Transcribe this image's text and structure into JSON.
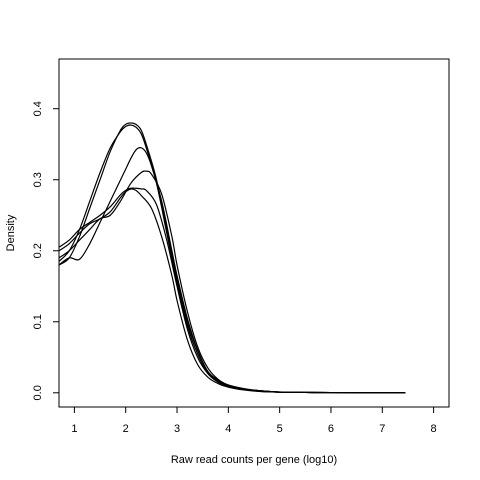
{
  "chart_data": {
    "type": "line",
    "title": "",
    "xlabel": "Raw read counts per gene (log10)",
    "ylabel": "Density",
    "xlim": [
      0.7,
      8.3
    ],
    "ylim": [
      -0.02,
      0.47
    ],
    "xticks": [
      1,
      2,
      3,
      4,
      5,
      6,
      7,
      8
    ],
    "yticks": [
      0.0,
      0.1,
      0.2,
      0.3,
      0.4
    ],
    "ytick_labels": [
      "0.0",
      "0.1",
      "0.2",
      "0.3",
      "0.4"
    ],
    "grid": false,
    "legend": "none",
    "series": [
      {
        "x": [
          0.7,
          0.9,
          1.1,
          1.3,
          1.5,
          1.7,
          1.9,
          2.0,
          2.1,
          2.2,
          2.3,
          2.4,
          2.6,
          2.8,
          3.0,
          3.2,
          3.4,
          3.6,
          3.8,
          4.0,
          4.3,
          4.6,
          5.0,
          5.5,
          6.0,
          7.0,
          7.45
        ],
        "y": [
          0.18,
          0.19,
          0.22,
          0.26,
          0.3,
          0.34,
          0.37,
          0.378,
          0.38,
          0.378,
          0.37,
          0.35,
          0.3,
          0.23,
          0.16,
          0.1,
          0.06,
          0.03,
          0.018,
          0.01,
          0.005,
          0.003,
          0.001,
          0.0005,
          0.0003,
          0.0002,
          0.0001
        ]
      },
      {
        "x": [
          0.7,
          0.9,
          1.1,
          1.3,
          1.5,
          1.7,
          1.9,
          2.0,
          2.1,
          2.2,
          2.3,
          2.4,
          2.6,
          2.8,
          3.0,
          3.2,
          3.4,
          3.6,
          3.8,
          4.0,
          4.3,
          4.6,
          5.0,
          5.5,
          6.0,
          7.0,
          7.45
        ],
        "y": [
          0.185,
          0.2,
          0.23,
          0.27,
          0.31,
          0.345,
          0.368,
          0.375,
          0.377,
          0.374,
          0.365,
          0.345,
          0.295,
          0.225,
          0.155,
          0.095,
          0.055,
          0.028,
          0.016,
          0.009,
          0.005,
          0.003,
          0.001,
          0.0005,
          0.0003,
          0.0002,
          0.0001
        ]
      },
      {
        "x": [
          0.7,
          0.9,
          1.1,
          1.3,
          1.5,
          1.7,
          1.9,
          2.0,
          2.1,
          2.2,
          2.3,
          2.4,
          2.5,
          2.7,
          2.9,
          3.0,
          3.2,
          3.4,
          3.6,
          3.8,
          4.0,
          4.3,
          4.6,
          5.0,
          5.5,
          6.0,
          7.0,
          7.45
        ],
        "y": [
          0.18,
          0.19,
          0.188,
          0.21,
          0.24,
          0.27,
          0.3,
          0.315,
          0.33,
          0.342,
          0.345,
          0.338,
          0.32,
          0.27,
          0.2,
          0.165,
          0.105,
          0.06,
          0.03,
          0.017,
          0.01,
          0.005,
          0.003,
          0.001,
          0.0005,
          0.0003,
          0.0002,
          0.0001
        ]
      },
      {
        "x": [
          0.7,
          0.9,
          1.1,
          1.3,
          1.5,
          1.7,
          1.9,
          2.1,
          2.3,
          2.4,
          2.5,
          2.7,
          2.9,
          3.0,
          3.2,
          3.4,
          3.6,
          3.8,
          4.0,
          4.3,
          4.6,
          5.0,
          5.5,
          6.0,
          7.0,
          7.45
        ],
        "y": [
          0.19,
          0.2,
          0.215,
          0.23,
          0.245,
          0.25,
          0.27,
          0.295,
          0.31,
          0.312,
          0.308,
          0.28,
          0.22,
          0.18,
          0.115,
          0.065,
          0.035,
          0.019,
          0.011,
          0.006,
          0.003,
          0.0012,
          0.0006,
          0.0003,
          0.0002,
          0.0001
        ]
      },
      {
        "x": [
          0.7,
          0.9,
          1.1,
          1.3,
          1.5,
          1.7,
          1.9,
          2.0,
          2.1,
          2.2,
          2.3,
          2.5,
          2.7,
          2.9,
          3.0,
          3.2,
          3.4,
          3.6,
          3.8,
          4.0,
          4.3,
          4.6,
          5.0,
          5.5,
          6.0,
          7.0,
          7.45
        ],
        "y": [
          0.2,
          0.21,
          0.225,
          0.238,
          0.245,
          0.255,
          0.275,
          0.283,
          0.287,
          0.285,
          0.278,
          0.26,
          0.22,
          0.165,
          0.13,
          0.075,
          0.04,
          0.022,
          0.013,
          0.008,
          0.004,
          0.002,
          0.001,
          0.0005,
          0.0003,
          0.0002,
          0.0001
        ]
      },
      {
        "x": [
          0.7,
          0.9,
          1.1,
          1.3,
          1.5,
          1.7,
          1.9,
          2.0,
          2.1,
          2.2,
          2.3,
          2.4,
          2.6,
          2.8,
          3.0,
          3.2,
          3.4,
          3.6,
          3.8,
          4.0,
          4.3,
          4.6,
          5.0,
          5.5,
          6.0,
          7.0,
          7.45
        ],
        "y": [
          0.205,
          0.215,
          0.23,
          0.24,
          0.25,
          0.262,
          0.279,
          0.285,
          0.288,
          0.288,
          0.287,
          0.285,
          0.265,
          0.215,
          0.15,
          0.09,
          0.05,
          0.027,
          0.015,
          0.009,
          0.005,
          0.002,
          0.001,
          0.0005,
          0.0003,
          0.0002,
          0.0001
        ]
      }
    ]
  }
}
